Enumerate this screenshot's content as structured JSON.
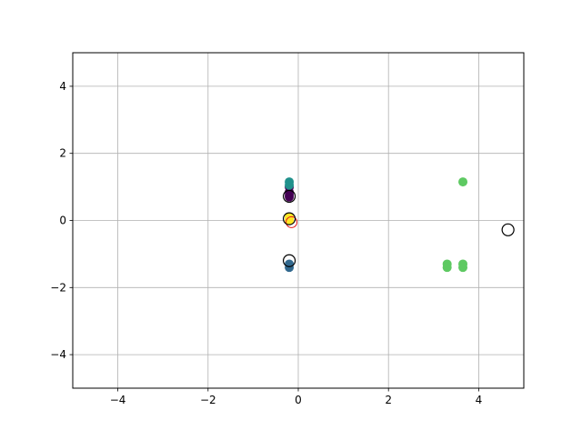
{
  "chart_data": {
    "type": "scatter",
    "title": "",
    "xlabel": "",
    "ylabel": "",
    "xlim": [
      -5,
      5
    ],
    "ylim": [
      -5,
      5
    ],
    "grid": true,
    "x_ticks": [
      -4,
      -2,
      0,
      2,
      4
    ],
    "y_ticks": [
      -4,
      -2,
      0,
      2,
      4
    ],
    "x_tick_labels": [
      "−4",
      "−2",
      "0",
      "2",
      "4"
    ],
    "y_tick_labels": [
      "−4",
      "−2",
      "0",
      "2",
      "4"
    ],
    "series": [
      {
        "color": "#440154",
        "marker": "filled-circle",
        "points": [
          [
            -0.2,
            1.0
          ],
          [
            -0.2,
            0.85
          ],
          [
            -0.2,
            0.75
          ],
          [
            -0.2,
            0.7
          ]
        ]
      },
      {
        "color": "#21918c",
        "marker": "filled-circle",
        "points": [
          [
            -0.2,
            1.15
          ],
          [
            -0.2,
            1.05
          ]
        ]
      },
      {
        "color": "#31688e",
        "marker": "filled-circle",
        "points": [
          [
            -0.2,
            -1.3
          ],
          [
            -0.2,
            -1.4
          ]
        ]
      },
      {
        "color": "#fde725",
        "marker": "filled-circle",
        "points": [
          [
            -0.2,
            0.1
          ],
          [
            -0.2,
            0.05
          ],
          [
            -0.2,
            0.0
          ]
        ]
      },
      {
        "color": "#5ec962",
        "marker": "filled-circle",
        "points": [
          [
            3.3,
            -1.3
          ],
          [
            3.3,
            -1.4
          ],
          [
            3.65,
            -1.3
          ],
          [
            3.65,
            -1.4
          ],
          [
            3.65,
            1.15
          ]
        ]
      }
    ],
    "centroids": {
      "marker": "hollow-circle",
      "edge_color": "#000000",
      "points": [
        [
          -0.2,
          0.72
        ],
        [
          -0.2,
          0.05
        ],
        [
          -0.2,
          -1.2
        ],
        [
          4.65,
          -0.28
        ]
      ]
    },
    "highlight": {
      "marker": "hollow-circle",
      "edge_color": "#e41a1c",
      "points": [
        [
          -0.15,
          -0.05
        ]
      ]
    }
  }
}
